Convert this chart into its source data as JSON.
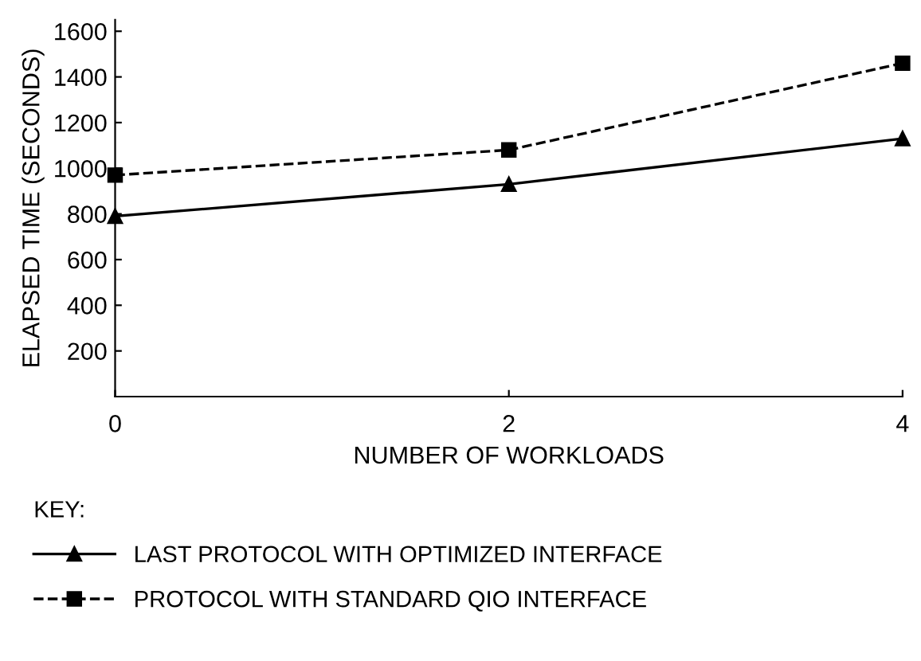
{
  "chart_data": {
    "type": "line",
    "xlabel": "NUMBER OF WORKLOADS",
    "ylabel": "ELAPSED TIME (SECONDS)",
    "legend_title": "KEY:",
    "legend": "bottom",
    "x": [
      0,
      2,
      4
    ],
    "xlim": [
      0,
      4
    ],
    "xticks": [
      0,
      2,
      4
    ],
    "ylim": [
      0,
      1650
    ],
    "yticks": [
      200,
      400,
      600,
      800,
      1000,
      1200,
      1400,
      1600
    ],
    "grid": false,
    "series": [
      {
        "name": "LAST PROTOCOL WITH OPTIMIZED INTERFACE",
        "color": "#000000",
        "values": [
          790,
          930,
          1130
        ],
        "marker": "triangle",
        "line_style": "solid"
      },
      {
        "name": "PROTOCOL WITH STANDARD QIO INTERFACE",
        "color": "#000000",
        "values": [
          970,
          1080,
          1460
        ],
        "marker": "square",
        "line_style": "dashed"
      }
    ]
  }
}
